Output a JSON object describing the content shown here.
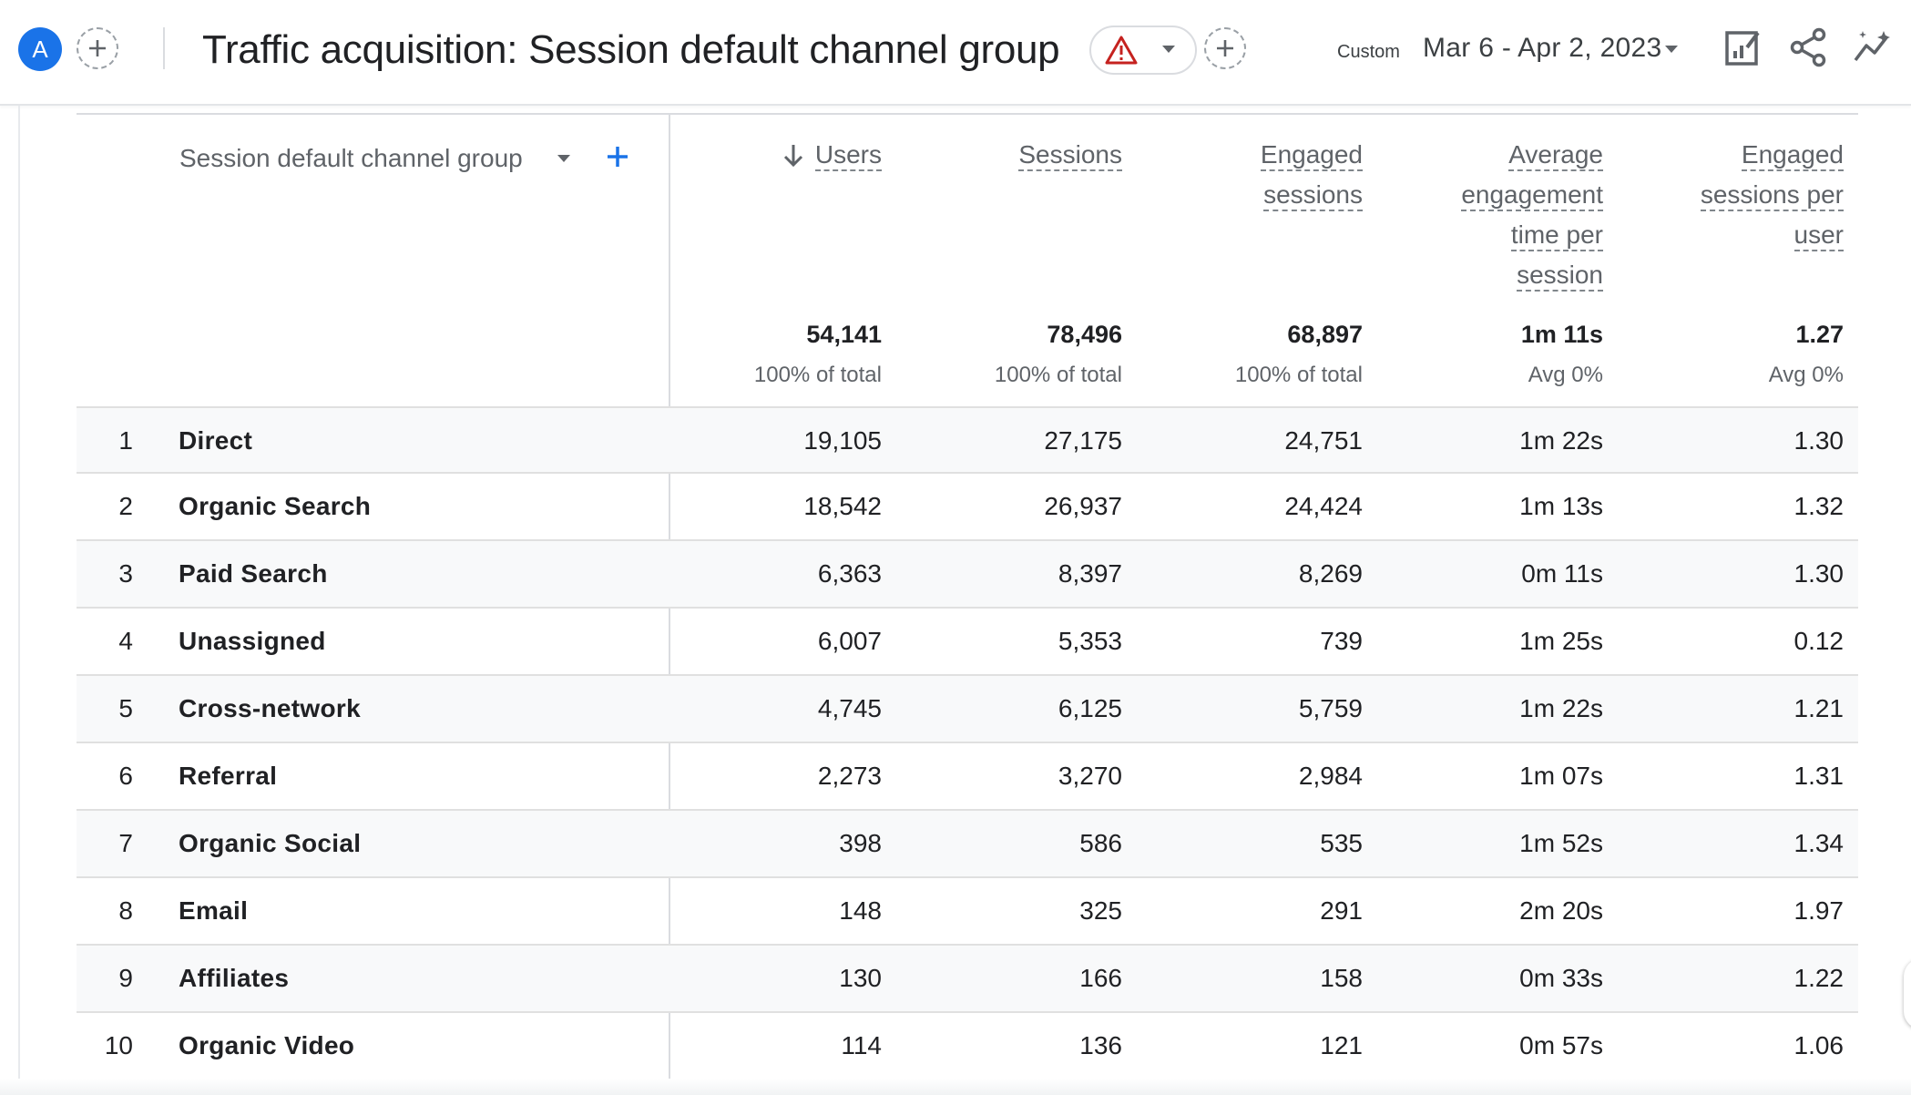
{
  "header": {
    "avatar_letter": "A",
    "title": "Traffic acquisition: Session default channel group",
    "date_label": "Custom",
    "date_range": "Mar 6 - Apr 2, 2023",
    "icons": [
      "add-comparison-icon",
      "warning-icon",
      "chevron-down-icon",
      "add-icon",
      "customize-report-icon",
      "share-icon",
      "insights-icon"
    ]
  },
  "table": {
    "dimension_header": "Session default channel group",
    "columns": [
      {
        "key": "users",
        "label": "Users",
        "lines": [
          "Users"
        ],
        "total": "54,141",
        "total_sub": "100% of total",
        "sorted": "desc"
      },
      {
        "key": "sessions",
        "label": "Sessions",
        "lines": [
          "Sessions"
        ],
        "total": "78,496",
        "total_sub": "100% of total"
      },
      {
        "key": "engaged_sessions",
        "label": "Engaged sessions",
        "lines": [
          "Engaged",
          "sessions"
        ],
        "total": "68,897",
        "total_sub": "100% of total"
      },
      {
        "key": "avg_engagement_time",
        "label": "Average engagement time per session",
        "lines": [
          "Average",
          "engagement",
          "time per",
          "session"
        ],
        "total": "1m 11s",
        "total_sub": "Avg 0%"
      },
      {
        "key": "engaged_sessions_per_user",
        "label": "Engaged sessions per user",
        "lines": [
          "Engaged",
          "sessions per",
          "user"
        ],
        "total": "1.27",
        "total_sub": "Avg 0%"
      }
    ],
    "rows": [
      {
        "index": "1",
        "channel": "Direct",
        "values": [
          "19,105",
          "27,175",
          "24,751",
          "1m 22s",
          "1.30"
        ]
      },
      {
        "index": "2",
        "channel": "Organic Search",
        "values": [
          "18,542",
          "26,937",
          "24,424",
          "1m 13s",
          "1.32"
        ]
      },
      {
        "index": "3",
        "channel": "Paid Search",
        "values": [
          "6,363",
          "8,397",
          "8,269",
          "0m 11s",
          "1.30"
        ]
      },
      {
        "index": "4",
        "channel": "Unassigned",
        "values": [
          "6,007",
          "5,353",
          "739",
          "1m 25s",
          "0.12"
        ]
      },
      {
        "index": "5",
        "channel": "Cross-network",
        "values": [
          "4,745",
          "6,125",
          "5,759",
          "1m 22s",
          "1.21"
        ]
      },
      {
        "index": "6",
        "channel": "Referral",
        "values": [
          "2,273",
          "3,270",
          "2,984",
          "1m 07s",
          "1.31"
        ]
      },
      {
        "index": "7",
        "channel": "Organic Social",
        "values": [
          "398",
          "586",
          "535",
          "1m 52s",
          "1.34"
        ]
      },
      {
        "index": "8",
        "channel": "Email",
        "values": [
          "148",
          "325",
          "291",
          "2m 20s",
          "1.97"
        ]
      },
      {
        "index": "9",
        "channel": "Affiliates",
        "values": [
          "130",
          "166",
          "158",
          "0m 33s",
          "1.22"
        ]
      },
      {
        "index": "10",
        "channel": "Organic Video",
        "values": [
          "114",
          "136",
          "121",
          "0m 57s",
          "1.06"
        ]
      }
    ]
  },
  "colors": {
    "accent": "#1a73e8",
    "warning": "#c5221f",
    "text": "#202124",
    "muted": "#5f6368",
    "row_shade": "#f8f9fa"
  }
}
